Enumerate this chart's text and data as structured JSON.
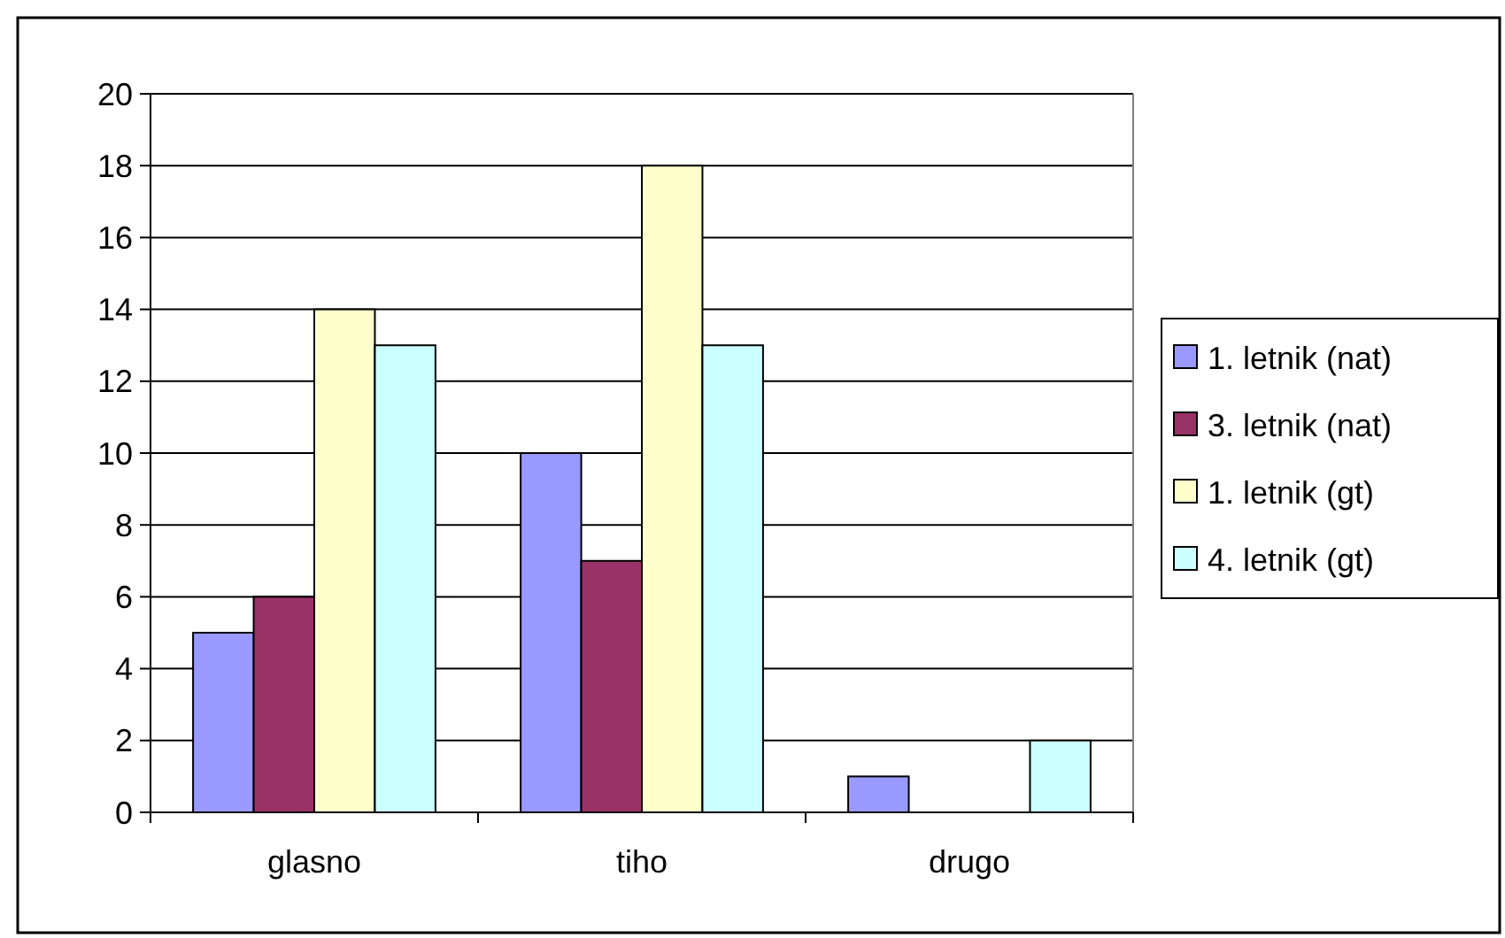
{
  "chart_data": {
    "type": "bar",
    "categories": [
      "glasno",
      "tiho",
      "drugo"
    ],
    "series": [
      {
        "name": "1. letnik (nat)",
        "color": "#9999ff",
        "values": [
          5,
          10,
          1
        ]
      },
      {
        "name": "3. letnik (nat)",
        "color": "#993366",
        "values": [
          6,
          7,
          0
        ]
      },
      {
        "name": "1. letnik (gt)",
        "color": "#ffffcc",
        "values": [
          14,
          18,
          0
        ]
      },
      {
        "name": "4. letnik (gt)",
        "color": "#ccffff",
        "values": [
          13,
          13,
          2
        ]
      }
    ],
    "ylim": [
      0,
      20
    ],
    "yticks": [
      0,
      2,
      4,
      6,
      8,
      10,
      12,
      14,
      16,
      18,
      20
    ],
    "grid": "y",
    "legend": "right"
  }
}
